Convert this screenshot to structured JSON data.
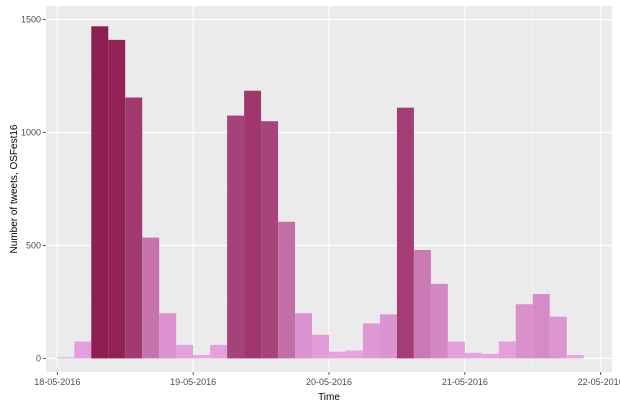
{
  "chart_data": {
    "type": "bar",
    "xlabel": "Time",
    "ylabel": "Number of tweets, OSFest16",
    "x_domain": [
      "2016-05-17T22:00",
      "2016-05-22T02:00"
    ],
    "ylim": [
      -60,
      1560
    ],
    "grid": true,
    "legend": "none",
    "x_ticks": [
      {
        "time": "2016-05-18T00:00",
        "label": "18-05-2016"
      },
      {
        "time": "2016-05-19T00:00",
        "label": "19-05-2016"
      },
      {
        "time": "2016-05-20T00:00",
        "label": "20-05-2016"
      },
      {
        "time": "2016-05-21T00:00",
        "label": "21-05-2016"
      },
      {
        "time": "2016-05-22T00:00",
        "label": "22-05-2016"
      }
    ],
    "y_ticks": [
      {
        "value": 0,
        "label": "0"
      },
      {
        "value": 500,
        "label": "500"
      },
      {
        "value": 1000,
        "label": "1000"
      },
      {
        "value": 1500,
        "label": "1500"
      }
    ],
    "bin_hours": 3,
    "bins": [
      {
        "start": "2016-05-18T00:00",
        "value": 5
      },
      {
        "start": "2016-05-18T03:00",
        "value": 75
      },
      {
        "start": "2016-05-18T06:00",
        "value": 1470
      },
      {
        "start": "2016-05-18T09:00",
        "value": 1410
      },
      {
        "start": "2016-05-18T12:00",
        "value": 1155
      },
      {
        "start": "2016-05-18T15:00",
        "value": 535
      },
      {
        "start": "2016-05-18T18:00",
        "value": 200
      },
      {
        "start": "2016-05-18T21:00",
        "value": 60
      },
      {
        "start": "2016-05-19T00:00",
        "value": 15
      },
      {
        "start": "2016-05-19T03:00",
        "value": 60
      },
      {
        "start": "2016-05-19T06:00",
        "value": 1075
      },
      {
        "start": "2016-05-19T09:00",
        "value": 1185
      },
      {
        "start": "2016-05-19T12:00",
        "value": 1050
      },
      {
        "start": "2016-05-19T15:00",
        "value": 605
      },
      {
        "start": "2016-05-19T18:00",
        "value": 200
      },
      {
        "start": "2016-05-19T21:00",
        "value": 105
      },
      {
        "start": "2016-05-20T00:00",
        "value": 30
      },
      {
        "start": "2016-05-20T03:00",
        "value": 35
      },
      {
        "start": "2016-05-20T06:00",
        "value": 155
      },
      {
        "start": "2016-05-20T09:00",
        "value": 195
      },
      {
        "start": "2016-05-20T12:00",
        "value": 1110
      },
      {
        "start": "2016-05-20T15:00",
        "value": 480
      },
      {
        "start": "2016-05-20T18:00",
        "value": 330
      },
      {
        "start": "2016-05-20T21:00",
        "value": 75
      },
      {
        "start": "2016-05-21T00:00",
        "value": 25
      },
      {
        "start": "2016-05-21T03:00",
        "value": 20
      },
      {
        "start": "2016-05-21T06:00",
        "value": 75
      },
      {
        "start": "2016-05-21T09:00",
        "value": 240
      },
      {
        "start": "2016-05-21T12:00",
        "value": 285
      },
      {
        "start": "2016-05-21T15:00",
        "value": 185
      },
      {
        "start": "2016-05-21T18:00",
        "value": 15
      }
    ],
    "fill_scale": {
      "low_color": "#e8a6e3",
      "high_color": "#8b1a4f",
      "domain": [
        0,
        1500
      ]
    },
    "colors": {
      "panel": "#ebebeb",
      "grid_major": "#ffffff",
      "grid_minor": "#f4f4f4",
      "tick": "#333333"
    }
  }
}
